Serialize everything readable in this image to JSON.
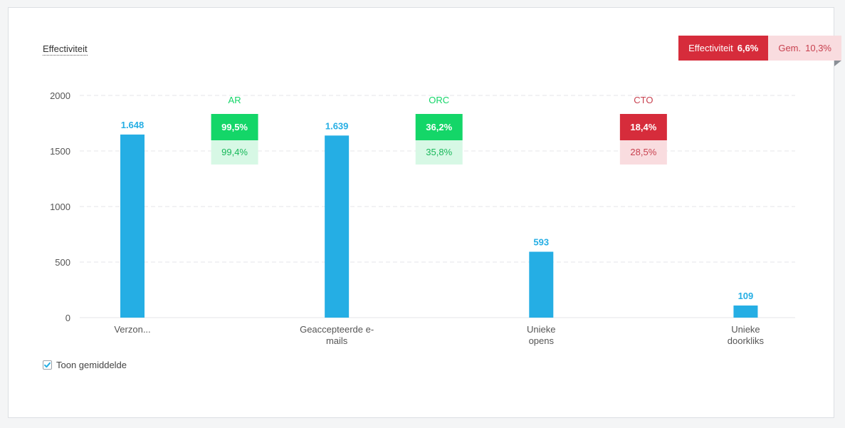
{
  "title": "Effectiviteit",
  "effectiveness_badge": {
    "label": "Effectiviteit",
    "value": "6,6%",
    "avg_label": "Gem.",
    "avg_value": "10,3%",
    "color": "#d62c3b",
    "avg_bg": "#f9dcdf"
  },
  "show_average": {
    "label": "Toon gemiddelde",
    "checked": true
  },
  "colors": {
    "bar": "#25aee4",
    "value_label": "#25aee4",
    "good": "#14d668",
    "good_light": "#d7f8e5",
    "good_text": "#18b85a",
    "bad": "#d62c3b",
    "bad_light": "#f9dcdf",
    "bad_text": "#c8414f",
    "grid": "#e4e6e8",
    "axis_text": "#555555"
  },
  "chart_data": {
    "type": "bar",
    "categories": [
      [
        "Verzon..."
      ],
      [
        "Geaccepteerde e-",
        "mails"
      ],
      [
        "Unieke",
        "opens"
      ],
      [
        "Unieke",
        "doorkliks"
      ]
    ],
    "values": [
      1648,
      1639,
      593,
      109
    ],
    "value_labels": [
      "1.648",
      "1.639",
      "593",
      "109"
    ],
    "ylim": [
      0,
      2000
    ],
    "yticks": [
      0,
      500,
      1000,
      1500,
      2000
    ],
    "grid": true,
    "rates": [
      {
        "name": "AR",
        "value": "99,5%",
        "average": "99,4%",
        "status": "good"
      },
      {
        "name": "ORC",
        "value": "36,2%",
        "average": "35,8%",
        "status": "good"
      },
      {
        "name": "CTO",
        "value": "18,4%",
        "average": "28,5%",
        "status": "bad"
      }
    ]
  }
}
